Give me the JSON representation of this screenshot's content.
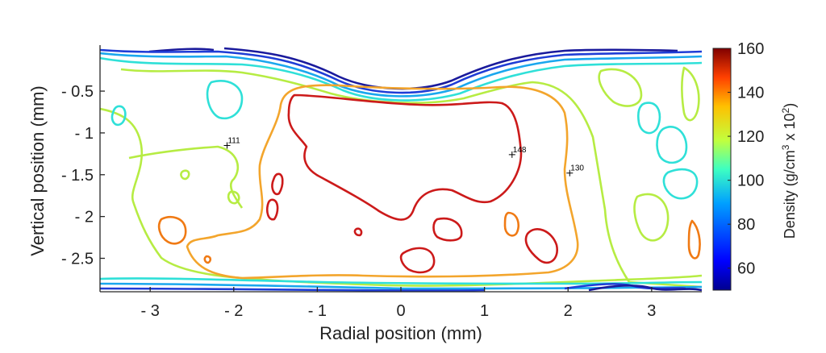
{
  "chart_data": {
    "type": "contour",
    "xlabel": "Radial position (mm)",
    "ylabel": "Vertical position (mm)",
    "xlim": [
      -3.6,
      3.6
    ],
    "ylim": [
      -2.9,
      0.05
    ],
    "x_ticks": [
      -3,
      -2,
      -1,
      0,
      1,
      2,
      3
    ],
    "x_tick_labels": [
      "- 3",
      "- 2",
      "- 1",
      "0",
      "1",
      "2",
      "3"
    ],
    "y_ticks": [
      -0.5,
      -1,
      -1.5,
      -2,
      -2.5
    ],
    "y_tick_labels": [
      "- 0.5",
      "- 1",
      "- 1.5",
      "- 2",
      "- 2.5"
    ],
    "grid": false,
    "colorbar": {
      "label_parts": {
        "pre": "Density  (g/cm",
        "sup1": "3",
        "mid": " x 10",
        "sup2": "2",
        "post": ")"
      },
      "range": [
        50,
        160
      ],
      "ticks": [
        60,
        80,
        100,
        120,
        140,
        160
      ],
      "tick_labels": [
        "60",
        "80",
        "100",
        "120",
        "140",
        "160"
      ]
    },
    "annotations": [
      {
        "label": "111",
        "x": -2.08,
        "y": -1.15
      },
      {
        "label": "148",
        "x": 1.33,
        "y": -1.26
      },
      {
        "label": "130",
        "x": 2.02,
        "y": -1.48
      }
    ],
    "contour_levels": [
      {
        "level": 55,
        "color": "#1a1a9c"
      },
      {
        "level": 65,
        "color": "#1f3dd6"
      },
      {
        "level": 78,
        "color": "#1aa7ee"
      },
      {
        "level": 90,
        "color": "#2fe0d8"
      },
      {
        "level": 103,
        "color": "#b6ec43"
      },
      {
        "level": 120,
        "color": "#f3a52c"
      },
      {
        "level": 135,
        "color": "#f07a14"
      },
      {
        "level": 148,
        "color": "#cc1a1a"
      }
    ]
  }
}
